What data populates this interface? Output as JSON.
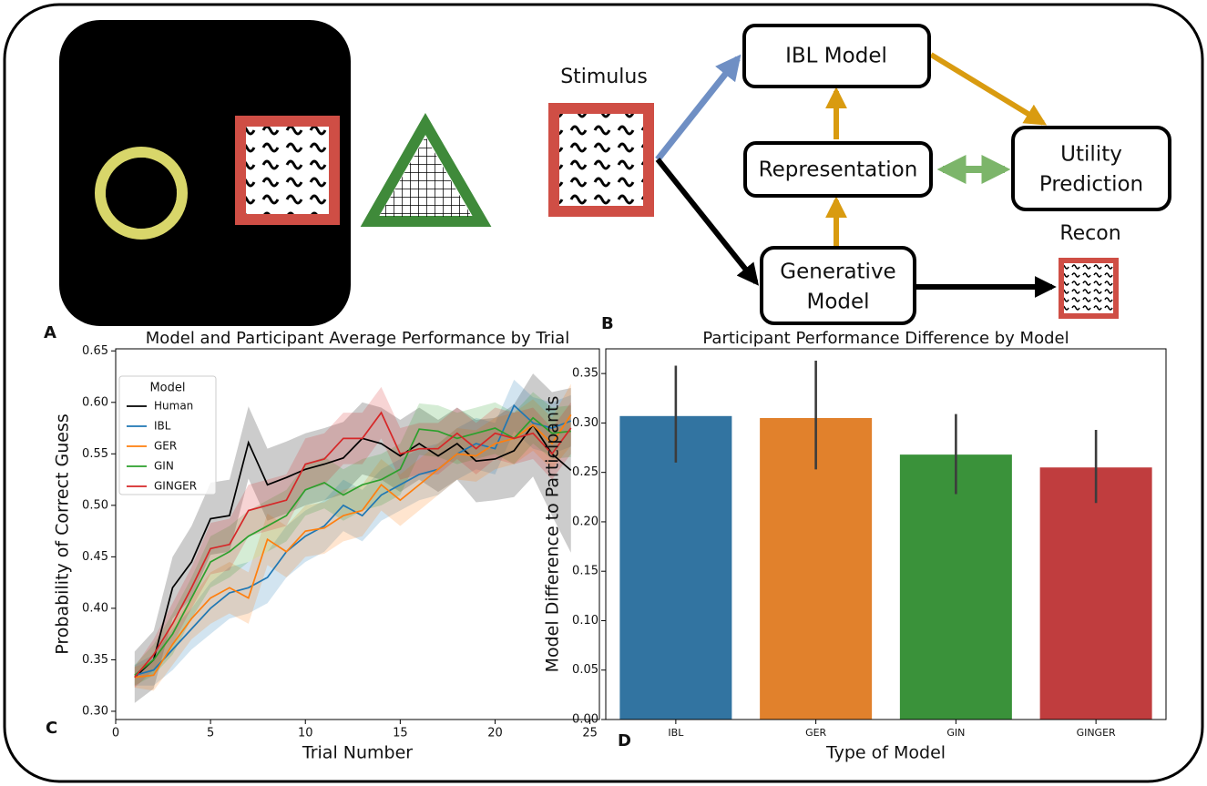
{
  "diagram": {
    "panel_labels": [
      "A",
      "B",
      "C",
      "D"
    ],
    "stimulus": "Stimulus",
    "recon": "Recon",
    "nodes": [
      {
        "lines": [
          "IBL Model"
        ]
      },
      {
        "lines": [
          "Representation"
        ]
      },
      {
        "lines": [
          "Utility",
          "Prediction"
        ]
      },
      {
        "lines": [
          "Generative",
          "Model"
        ]
      }
    ]
  },
  "chart_data": [
    {
      "type": "line",
      "title": "Model and Participant Average Performance by Trial",
      "x_label": "Trial Number",
      "y_label": "Probability of Correct Guess",
      "legend_title": "Model",
      "legend": "upper left",
      "x": [
        1,
        2,
        3,
        4,
        5,
        6,
        7,
        8,
        9,
        10,
        11,
        12,
        13,
        14,
        15,
        16,
        17,
        18,
        19,
        20,
        21,
        22,
        23,
        24
      ],
      "xlim": [
        0,
        25.5
      ],
      "ylim": [
        0.292,
        0.652
      ],
      "xticks": [
        0,
        5,
        10,
        15,
        20,
        25
      ],
      "yticks": [
        {
          "value": 0.3,
          "label": "0.30"
        },
        {
          "value": 0.35,
          "label": "0.35"
        },
        {
          "value": 0.4,
          "label": "0.40"
        },
        {
          "value": 0.45,
          "label": "0.45"
        },
        {
          "value": 0.5,
          "label": "0.50"
        },
        {
          "value": 0.55,
          "label": "0.55"
        },
        {
          "value": 0.6,
          "label": "0.60"
        },
        {
          "value": 0.65,
          "label": "0.65"
        }
      ],
      "series": [
        {
          "name": "Human",
          "color": "#000000",
          "values": [
            0.333,
            0.35,
            0.42,
            0.445,
            0.487,
            0.49,
            0.561,
            0.52,
            0.527,
            0.535,
            0.54,
            0.546,
            0.565,
            0.56,
            0.548,
            0.56,
            0.548,
            0.56,
            0.543,
            0.545,
            0.553,
            0.578,
            0.55,
            0.534
          ],
          "ci": [
            0.025,
            0.028,
            0.03,
            0.035,
            0.035,
            0.035,
            0.035,
            0.035,
            0.035,
            0.035,
            0.035,
            0.035,
            0.035,
            0.035,
            0.035,
            0.035,
            0.035,
            0.035,
            0.04,
            0.04,
            0.045,
            0.05,
            0.06,
            0.08
          ]
        },
        {
          "name": "IBL",
          "color": "#1f77b4",
          "values": [
            0.335,
            0.34,
            0.36,
            0.38,
            0.4,
            0.415,
            0.42,
            0.43,
            0.455,
            0.47,
            0.48,
            0.5,
            0.49,
            0.51,
            0.52,
            0.53,
            0.535,
            0.55,
            0.56,
            0.555,
            0.597,
            0.58,
            0.575,
            0.582
          ],
          "ci": [
            0.01,
            0.015,
            0.02,
            0.02,
            0.025,
            0.025,
            0.025,
            0.025,
            0.025,
            0.025,
            0.025,
            0.025,
            0.025,
            0.025,
            0.025,
            0.025,
            0.025,
            0.025,
            0.025,
            0.025,
            0.025,
            0.025,
            0.025,
            0.025
          ]
        },
        {
          "name": "GER",
          "color": "#ff7f0e",
          "values": [
            0.333,
            0.335,
            0.365,
            0.39,
            0.41,
            0.42,
            0.41,
            0.467,
            0.455,
            0.475,
            0.478,
            0.49,
            0.495,
            0.52,
            0.505,
            0.52,
            0.535,
            0.55,
            0.548,
            0.56,
            0.565,
            0.578,
            0.56,
            0.588
          ],
          "ci": [
            0.01,
            0.015,
            0.02,
            0.02,
            0.025,
            0.025,
            0.025,
            0.025,
            0.025,
            0.025,
            0.025,
            0.025,
            0.025,
            0.025,
            0.025,
            0.025,
            0.025,
            0.025,
            0.025,
            0.025,
            0.025,
            0.025,
            0.025,
            0.03
          ]
        },
        {
          "name": "GIN",
          "color": "#2ca02c",
          "values": [
            0.335,
            0.35,
            0.375,
            0.41,
            0.445,
            0.455,
            0.47,
            0.48,
            0.49,
            0.515,
            0.522,
            0.51,
            0.52,
            0.525,
            0.535,
            0.574,
            0.572,
            0.565,
            0.57,
            0.575,
            0.565,
            0.585,
            0.57,
            0.572
          ],
          "ci": [
            0.01,
            0.015,
            0.02,
            0.02,
            0.025,
            0.025,
            0.025,
            0.025,
            0.025,
            0.025,
            0.025,
            0.025,
            0.025,
            0.025,
            0.025,
            0.025,
            0.025,
            0.025,
            0.025,
            0.025,
            0.025,
            0.025,
            0.025,
            0.025
          ]
        },
        {
          "name": "GINGER",
          "color": "#d62728",
          "values": [
            0.333,
            0.355,
            0.385,
            0.42,
            0.458,
            0.462,
            0.495,
            0.5,
            0.505,
            0.54,
            0.545,
            0.565,
            0.565,
            0.59,
            0.55,
            0.555,
            0.555,
            0.57,
            0.555,
            0.57,
            0.565,
            0.57,
            0.55,
            0.575
          ],
          "ci": [
            0.01,
            0.015,
            0.02,
            0.02,
            0.025,
            0.025,
            0.025,
            0.025,
            0.025,
            0.025,
            0.025,
            0.025,
            0.025,
            0.025,
            0.025,
            0.025,
            0.025,
            0.025,
            0.025,
            0.025,
            0.025,
            0.025,
            0.025,
            0.025
          ]
        }
      ]
    },
    {
      "type": "bar",
      "title": "Participant Performance Difference by Model",
      "x_label": "Type of Model",
      "y_label": "Model Difference to Participants",
      "categories": [
        "IBL",
        "GER",
        "GIN",
        "GINGER"
      ],
      "values": [
        0.307,
        0.305,
        0.268,
        0.255
      ],
      "ci_low": [
        0.26,
        0.253,
        0.228,
        0.219
      ],
      "ci_high": [
        0.358,
        0.363,
        0.309,
        0.293
      ],
      "colors": [
        "#3274a1",
        "#e1812c",
        "#3a923a",
        "#c03d3e"
      ],
      "ylim": [
        0,
        0.375
      ],
      "yticks": [
        {
          "value": 0,
          "label": "0.00"
        },
        {
          "value": 0.05,
          "label": "0.05"
        },
        {
          "value": 0.1,
          "label": "0.10"
        },
        {
          "value": 0.15,
          "label": "0.15"
        },
        {
          "value": 0.2,
          "label": "0.20"
        },
        {
          "value": 0.25,
          "label": "0.25"
        },
        {
          "value": 0.3,
          "label": "0.30"
        },
        {
          "value": 0.35,
          "label": "0.35"
        }
      ]
    }
  ]
}
